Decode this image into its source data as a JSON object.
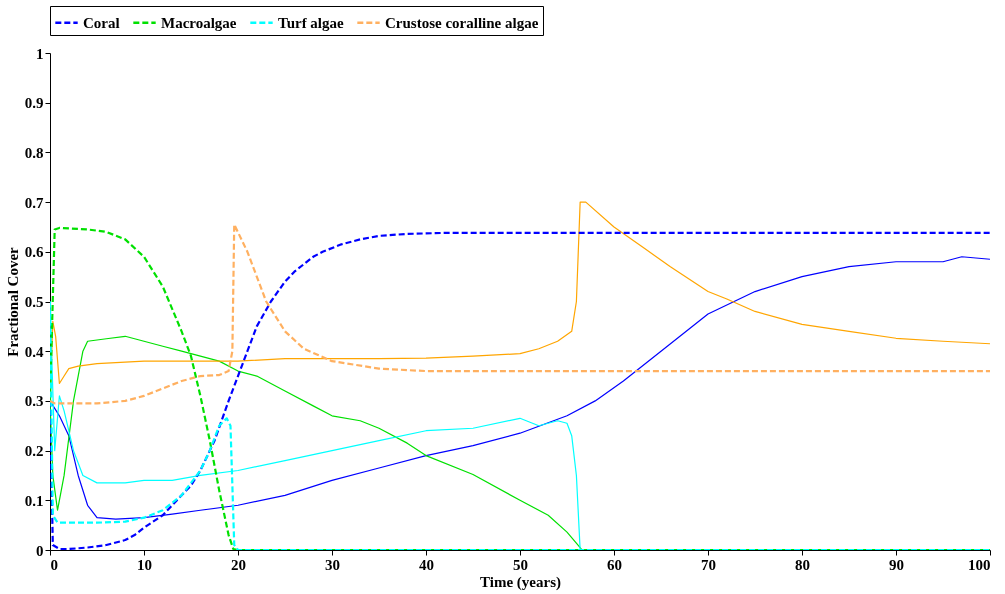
{
  "chart_data": {
    "type": "line",
    "xlabel": "Time (years)",
    "ylabel": "Fractional Cover",
    "xlim": [
      0,
      100
    ],
    "ylim": [
      0,
      1
    ],
    "xticks": [
      0,
      10,
      20,
      30,
      40,
      50,
      60,
      70,
      80,
      90,
      100
    ],
    "yticks": [
      {
        "value": 0,
        "label": "0"
      },
      0.1,
      0.2,
      0.3,
      0.4,
      0.5,
      0.6,
      0.7,
      0.8,
      0.9,
      {
        "value": 1,
        "label": "1"
      }
    ],
    "grid": false,
    "legend": "top",
    "marker": "none",
    "series": [
      {
        "name": "Coral",
        "color": "#0000ff",
        "line_style": "dashed",
        "x": [
          0,
          0.3,
          1,
          2,
          4,
          6,
          8,
          9,
          10,
          12,
          14,
          15,
          16,
          17.5,
          19,
          20,
          21,
          22,
          23.5,
          25,
          26,
          28,
          29,
          31,
          33,
          35,
          38,
          42,
          45,
          100
        ],
        "values": [
          0.3,
          0.01,
          0.002,
          0.002,
          0.005,
          0.01,
          0.02,
          0.03,
          0.045,
          0.07,
          0.11,
          0.13,
          0.16,
          0.22,
          0.3,
          0.35,
          0.4,
          0.45,
          0.5,
          0.54,
          0.56,
          0.59,
          0.6,
          0.615,
          0.625,
          0.632,
          0.636,
          0.638,
          0.638,
          0.638
        ]
      },
      {
        "name": "Macroalgae",
        "color": "#00e000",
        "line_style": "dashed",
        "x": [
          0,
          0.5,
          1,
          4,
          6,
          8,
          10,
          12,
          14,
          15,
          16,
          17,
          18,
          19,
          19.5,
          20,
          100
        ],
        "values": [
          0.3,
          0.645,
          0.648,
          0.645,
          0.64,
          0.625,
          0.59,
          0.53,
          0.44,
          0.39,
          0.31,
          0.22,
          0.12,
          0.03,
          0.002,
          0,
          0
        ]
      },
      {
        "name": "Turf algae",
        "color": "#00ffff",
        "line_style": "dashed",
        "x": [
          0,
          0.3,
          0.8,
          5,
          8,
          10,
          12,
          14,
          16,
          17,
          18,
          18.8,
          19.2,
          19.6,
          20,
          100
        ],
        "values": [
          0.5,
          0.07,
          0.055,
          0.055,
          0.057,
          0.065,
          0.08,
          0.11,
          0.16,
          0.2,
          0.25,
          0.265,
          0.25,
          0.01,
          0,
          0
        ]
      },
      {
        "name": "Crustose coralline algae",
        "color": "#ffb060",
        "line_style": "dashed",
        "x": [
          0,
          0.5,
          5,
          8,
          10,
          12,
          14,
          16,
          18,
          19,
          19.4,
          19.6,
          21,
          23,
          25,
          27,
          30,
          35,
          40,
          100
        ],
        "values": [
          0.3,
          0.295,
          0.295,
          0.3,
          0.31,
          0.325,
          0.34,
          0.35,
          0.352,
          0.36,
          0.4,
          0.655,
          0.6,
          0.5,
          0.44,
          0.405,
          0.38,
          0.365,
          0.36,
          0.36
        ]
      },
      {
        "color": "#0000ff",
        "line_style": "solid",
        "x": [
          0,
          1,
          2,
          3,
          4,
          5,
          7,
          10,
          13,
          16,
          20,
          25,
          30,
          35,
          40,
          45,
          50,
          55,
          58,
          61,
          65,
          70,
          75,
          80,
          85,
          90,
          95,
          97,
          100
        ],
        "values": [
          0.3,
          0.27,
          0.23,
          0.15,
          0.09,
          0.065,
          0.062,
          0.065,
          0.072,
          0.08,
          0.09,
          0.11,
          0.14,
          0.165,
          0.19,
          0.21,
          0.235,
          0.27,
          0.3,
          0.34,
          0.4,
          0.475,
          0.52,
          0.55,
          0.57,
          0.58,
          0.58,
          0.59,
          0.585
        ]
      },
      {
        "color": "#00e000",
        "line_style": "solid",
        "x": [
          0,
          0.3,
          0.8,
          1.5,
          2.5,
          3.5,
          4,
          6,
          8,
          10,
          12,
          14,
          16,
          18,
          20,
          22,
          25,
          28,
          30,
          33,
          35,
          38,
          40,
          45,
          50,
          53,
          55,
          56.4,
          56.6,
          100
        ],
        "values": [
          0.3,
          0.15,
          0.08,
          0.15,
          0.3,
          0.4,
          0.42,
          0.425,
          0.43,
          0.42,
          0.41,
          0.4,
          0.39,
          0.38,
          0.36,
          0.35,
          0.32,
          0.29,
          0.27,
          0.26,
          0.245,
          0.215,
          0.19,
          0.152,
          0.1,
          0.07,
          0.036,
          0.005,
          0,
          0
        ]
      },
      {
        "color": "#00ffff",
        "line_style": "solid",
        "x": [
          0,
          0.5,
          1,
          1.5,
          2.5,
          3.5,
          5,
          8,
          10,
          13,
          16,
          20,
          25,
          30,
          35,
          40,
          45,
          50,
          52,
          54,
          55,
          55.5,
          56,
          56.4
        ],
        "values": [
          0.5,
          0.2,
          0.31,
          0.28,
          0.2,
          0.15,
          0.135,
          0.135,
          0.14,
          0.14,
          0.15,
          0.16,
          0.18,
          0.2,
          0.22,
          0.24,
          0.245,
          0.265,
          0.25,
          0.26,
          0.255,
          0.23,
          0.15,
          0
        ]
      },
      {
        "color": "#ffa500",
        "line_style": "solid",
        "x": [
          0,
          0.3,
          0.6,
          1,
          1.5,
          2,
          3,
          5,
          10,
          15,
          20,
          25,
          30,
          35,
          40,
          45,
          50,
          52,
          54,
          55.5,
          56,
          56.4,
          57,
          60,
          63,
          66,
          70,
          72,
          75,
          80,
          85,
          90,
          95,
          100
        ],
        "values": [
          0.3,
          0.46,
          0.43,
          0.335,
          0.35,
          0.365,
          0.37,
          0.375,
          0.38,
          0.38,
          0.38,
          0.385,
          0.385,
          0.385,
          0.386,
          0.39,
          0.395,
          0.405,
          0.42,
          0.44,
          0.5,
          0.7,
          0.7,
          0.65,
          0.61,
          0.57,
          0.52,
          0.505,
          0.48,
          0.454,
          0.44,
          0.426,
          0.42,
          0.415
        ]
      }
    ]
  }
}
